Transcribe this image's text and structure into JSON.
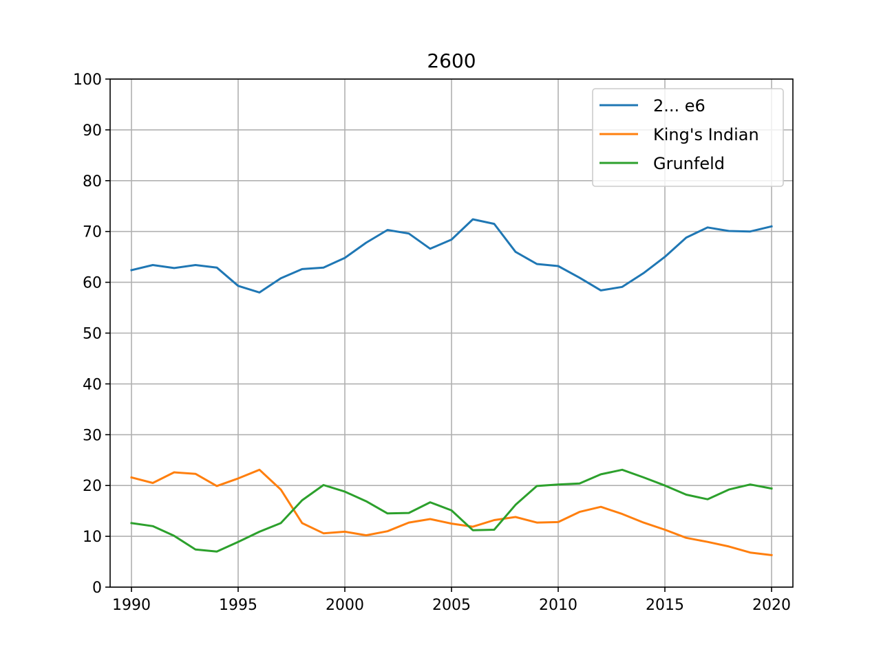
{
  "chart_data": {
    "type": "line",
    "title": "2600",
    "xlabel": "",
    "ylabel": "",
    "xlim": [
      1989,
      2021
    ],
    "ylim": [
      0,
      100
    ],
    "xticks": [
      1990,
      1995,
      2000,
      2005,
      2010,
      2015,
      2020
    ],
    "yticks": [
      0,
      10,
      20,
      30,
      40,
      50,
      60,
      70,
      80,
      90,
      100
    ],
    "grid": true,
    "legend_position": "top-right",
    "x": [
      1990,
      1991,
      1992,
      1993,
      1994,
      1995,
      1996,
      1997,
      1998,
      1999,
      2000,
      2001,
      2002,
      2003,
      2004,
      2005,
      2006,
      2007,
      2008,
      2009,
      2010,
      2011,
      2012,
      2013,
      2014,
      2015,
      2016,
      2017,
      2018,
      2019,
      2020
    ],
    "series": [
      {
        "name": "2... e6",
        "color": "#1f77b4",
        "values": [
          62.4,
          63.4,
          62.8,
          63.4,
          62.9,
          59.3,
          58.0,
          60.8,
          62.6,
          62.9,
          64.8,
          67.8,
          70.3,
          69.6,
          66.6,
          68.4,
          72.4,
          71.5,
          66.0,
          63.6,
          63.2,
          60.9,
          58.4,
          59.1,
          61.8,
          65.0,
          68.8,
          70.8,
          70.1,
          70.0,
          71.0
        ]
      },
      {
        "name": "King's Indian",
        "color": "#ff7f0e",
        "values": [
          21.6,
          20.5,
          22.6,
          22.3,
          19.9,
          21.4,
          23.1,
          19.2,
          12.6,
          10.6,
          10.9,
          10.2,
          11.0,
          12.7,
          13.4,
          12.5,
          11.9,
          13.2,
          13.8,
          12.7,
          12.8,
          14.8,
          15.8,
          14.4,
          12.7,
          11.3,
          9.7,
          8.9,
          8.0,
          6.8,
          6.3
        ]
      },
      {
        "name": "Grunfeld",
        "color": "#2ca02c",
        "values": [
          12.6,
          12.0,
          10.1,
          7.4,
          7.0,
          8.9,
          10.9,
          12.6,
          17.1,
          20.1,
          18.8,
          16.9,
          14.5,
          14.6,
          16.7,
          15.1,
          11.2,
          11.3,
          16.2,
          19.9,
          20.2,
          20.4,
          22.2,
          23.1,
          21.6,
          20.0,
          18.2,
          17.3,
          19.2,
          20.2,
          19.4
        ]
      }
    ]
  }
}
